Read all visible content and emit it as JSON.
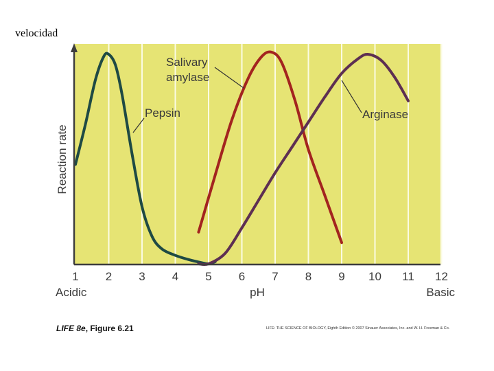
{
  "top_label": "velocidad",
  "caption": {
    "book": "LIFE 8e",
    "figure": ", Figure 6.21"
  },
  "credit": "LIFE: THE SCIENCE OF BIOLOGY, Eighth Edition © 2007 Sinauer Associates, Inc. and W. H. Freeman & Co.",
  "colors": {
    "background": "#e6e474",
    "gridline": "#fbfbe4",
    "axis": "#3d3d3d"
  },
  "chart_data": {
    "type": "line",
    "title": "",
    "xlabel": "pH",
    "ylabel": "Reaction rate",
    "x_end_labels": {
      "left": "Acidic",
      "right": "Basic"
    },
    "x_ticks": [
      "1",
      "2",
      "3",
      "4",
      "5",
      "6",
      "7",
      "8",
      "9",
      "10",
      "11",
      "12"
    ],
    "xlim": [
      1,
      12
    ],
    "ylim": [
      0,
      1
    ],
    "grid": true,
    "series": [
      {
        "name": "Pepsin",
        "color": "#1f4a44",
        "x": [
          1.0,
          1.3,
          1.6,
          1.85,
          2.0,
          2.2,
          2.4,
          2.7,
          3.0,
          3.3,
          3.6,
          4.0,
          4.4,
          4.8,
          5.0,
          5.2
        ],
        "y": [
          0.47,
          0.66,
          0.87,
          0.98,
          0.99,
          0.94,
          0.8,
          0.52,
          0.27,
          0.13,
          0.07,
          0.04,
          0.02,
          0.005,
          0.0,
          0.01
        ]
      },
      {
        "name": "Salivary amylase",
        "color": "#a3241f",
        "x": [
          4.7,
          5.2,
          5.7,
          6.2,
          6.6,
          6.9,
          7.2,
          7.6,
          8.0,
          8.5,
          9.0
        ],
        "y": [
          0.15,
          0.42,
          0.68,
          0.88,
          0.98,
          1.0,
          0.95,
          0.77,
          0.54,
          0.32,
          0.1
        ],
        "label_lines": [
          "Salivary",
          "amylase"
        ]
      },
      {
        "name": "Arginase",
        "color": "#5d2f52",
        "x": [
          4.7,
          5.0,
          5.5,
          6.0,
          6.5,
          7.0,
          7.5,
          8.0,
          8.5,
          9.0,
          9.5,
          9.8,
          10.2,
          10.6,
          11.0
        ],
        "y": [
          0.0,
          0.0,
          0.05,
          0.17,
          0.3,
          0.43,
          0.55,
          0.67,
          0.79,
          0.9,
          0.97,
          0.99,
          0.96,
          0.88,
          0.77
        ]
      }
    ]
  }
}
